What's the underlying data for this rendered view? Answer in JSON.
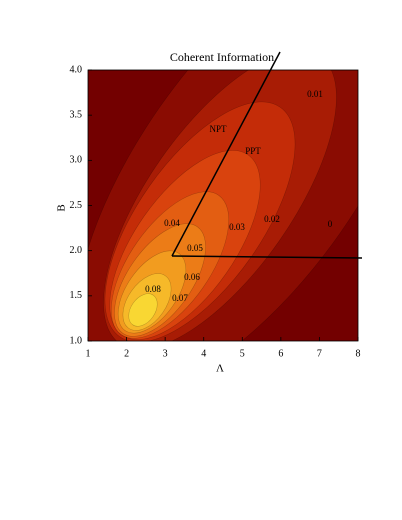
{
  "chart_data": {
    "type": "contour",
    "title": "Coherent Information",
    "xlabel": "Λ",
    "ylabel": "B",
    "xlim": [
      1,
      8
    ],
    "ylim": [
      1,
      4
    ],
    "xticks": [
      1,
      2,
      3,
      4,
      5,
      6,
      7,
      8
    ],
    "yticks": [
      {
        "value": 1,
        "label": "1.0"
      },
      1.5,
      {
        "value": 2,
        "label": "2.0"
      },
      2.5,
      {
        "value": 3,
        "label": "3.0"
      },
      3.5,
      {
        "value": 4,
        "label": "4.0"
      }
    ],
    "background": "#730000",
    "levels": [
      0,
      0.01,
      0.02,
      0.03,
      0.04,
      0.05,
      0.06,
      0.07,
      0.08
    ],
    "colors": [
      "#8a0c02",
      "#a81c05",
      "#c42c08",
      "#d9430e",
      "#e35e12",
      "#ec7c17",
      "#f29c1f",
      "#f6b929",
      "#f9d733"
    ],
    "annotations": [
      "NPT",
      "PPT"
    ]
  }
}
